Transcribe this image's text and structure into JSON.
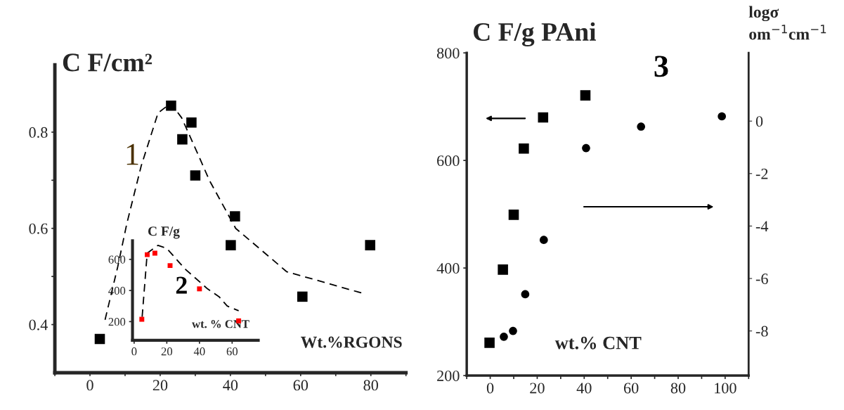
{
  "chart_data": [
    {
      "type": "scatter",
      "ylabel": "C F/cm²",
      "xlabel": "Wt.%RGONS",
      "xlim": [
        -10,
        90
      ],
      "ylim": [
        0.3,
        0.94
      ],
      "xticks": [
        {
          "value": -10,
          "label": null
        },
        0,
        {
          "value": 10,
          "label": null
        },
        20,
        {
          "value": 30,
          "label": null
        },
        40,
        {
          "value": 50,
          "label": null
        },
        60,
        {
          "value": 70,
          "label": null
        },
        80,
        {
          "value": 90,
          "label": null
        }
      ],
      "yticks": [
        0.4,
        {
          "value": 0.5,
          "label": null
        },
        0.6,
        {
          "value": 0.7,
          "label": null
        },
        0.8
      ],
      "marker": "square",
      "grid": false,
      "legend": false,
      "annotations": [
        "1"
      ],
      "series": [
        {
          "type": "scatter",
          "color": "#000000",
          "x": [
            2.8,
            23.1,
            28.9,
            26.3,
            30,
            41.3,
            40.1,
            60.5,
            79.8
          ],
          "values": [
            0.37,
            0.855,
            0.82,
            0.785,
            0.71,
            0.625,
            0.565,
            0.458,
            0.565
          ]
        },
        {
          "type": "line",
          "line_style": "dashed",
          "marker": "none",
          "color": "#000000",
          "x": [
            4.3,
            7.9,
            10.5,
            14.6,
            19.4,
            23,
            26.1,
            31,
            34,
            41.5,
            52,
            56,
            77.7
          ],
          "values": [
            0.41,
            0.52,
            0.61,
            0.73,
            0.84,
            0.86,
            0.83,
            0.75,
            0.7,
            0.6,
            0.535,
            0.51,
            0.465
          ]
        }
      ]
    },
    {
      "type": "scatter",
      "ylabel": "C F/g",
      "xlabel": "wt. % CNT",
      "xlim": [
        -1,
        76
      ],
      "ylim": [
        80,
        720
      ],
      "xticks": [
        0,
        20,
        40,
        60
      ],
      "yticks": [
        200,
        400,
        600
      ],
      "marker": "square",
      "grid": false,
      "legend": false,
      "annotations": [
        "2"
      ],
      "series": [
        {
          "type": "scatter",
          "color": "#ff0000",
          "x": [
            4.7,
            8,
            12.7,
            22,
            40,
            64
          ],
          "values": [
            215,
            630,
            640,
            560,
            410,
            205
          ]
        },
        {
          "type": "line",
          "line_style": "dashed",
          "marker": "none",
          "color": "#000000",
          "x": [
            4.9,
            8,
            14.6,
            20,
            31,
            45,
            52,
            57,
            64
          ],
          "values": [
            230,
            640,
            690,
            670,
            540,
            410,
            360,
            300,
            270
          ]
        }
      ]
    },
    {
      "type": "scatter",
      "ylabel": "C F/g PAni",
      "y2label": "logσ om$^{−1}$cm$^{−1}$",
      "xlabel": "wt.% CNT",
      "xlim": [
        -10,
        110
      ],
      "ylim": [
        200,
        800
      ],
      "y2lim": [
        -9.7,
        2.6
      ],
      "xticks": [
        {
          "value": -10,
          "label": null
        },
        0,
        {
          "value": 10,
          "label": null
        },
        20,
        {
          "value": 30,
          "label": null
        },
        40,
        {
          "value": 50,
          "label": null
        },
        60,
        {
          "value": 70,
          "label": null
        },
        80,
        {
          "value": 90,
          "label": null
        },
        100,
        {
          "value": 110,
          "label": null
        }
      ],
      "yticks": [
        200,
        400,
        600,
        800
      ],
      "y2ticks": [
        0,
        -2,
        -4,
        -6,
        -8
      ],
      "grid": false,
      "legend": false,
      "annotations": [
        "3"
      ],
      "series": [
        {
          "type": "scatter",
          "marker": "square",
          "color": "#000000",
          "x": [
            -0.3,
            5.4,
            10,
            14.3,
            22.5,
            40.5
          ],
          "values": [
            261,
            397,
            499,
            622,
            680,
            721
          ]
        },
        {
          "type": "scatter",
          "marker": "circle",
          "axis": "y2",
          "color": "#000000",
          "x": [
            5.8,
            9.7,
            14.9,
            22.8,
            40.8,
            64.2,
            98.6
          ],
          "values": [
            -8.22,
            -8.0,
            -6.6,
            -4.53,
            -1.03,
            -0.21,
            0.18
          ]
        }
      ]
    }
  ]
}
